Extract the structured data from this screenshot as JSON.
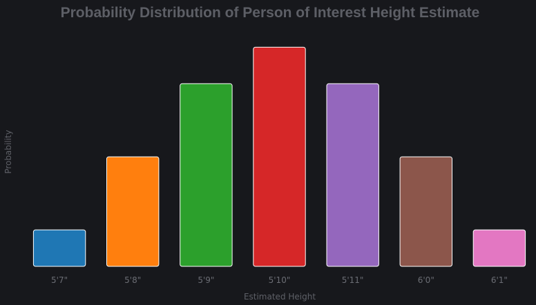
{
  "chart_data": {
    "type": "bar",
    "title": "Probability Distribution of Person of Interest Height Estimate",
    "xlabel": "Estimated Height",
    "ylabel": "Probability",
    "categories": [
      "5'7\"",
      "5'8\"",
      "5'9\"",
      "5'10\"",
      "5'11\"",
      "6'0\"",
      "6'1\""
    ],
    "values": [
      0.05,
      0.15,
      0.25,
      0.3,
      0.25,
      0.15,
      0.05
    ],
    "colors": [
      "#1f77b4",
      "#ff7f0e",
      "#2ca02c",
      "#d62728",
      "#9467bd",
      "#8c564b",
      "#e377c2"
    ],
    "ylim": [
      0,
      0.34
    ],
    "grid": false,
    "legend": "none"
  }
}
